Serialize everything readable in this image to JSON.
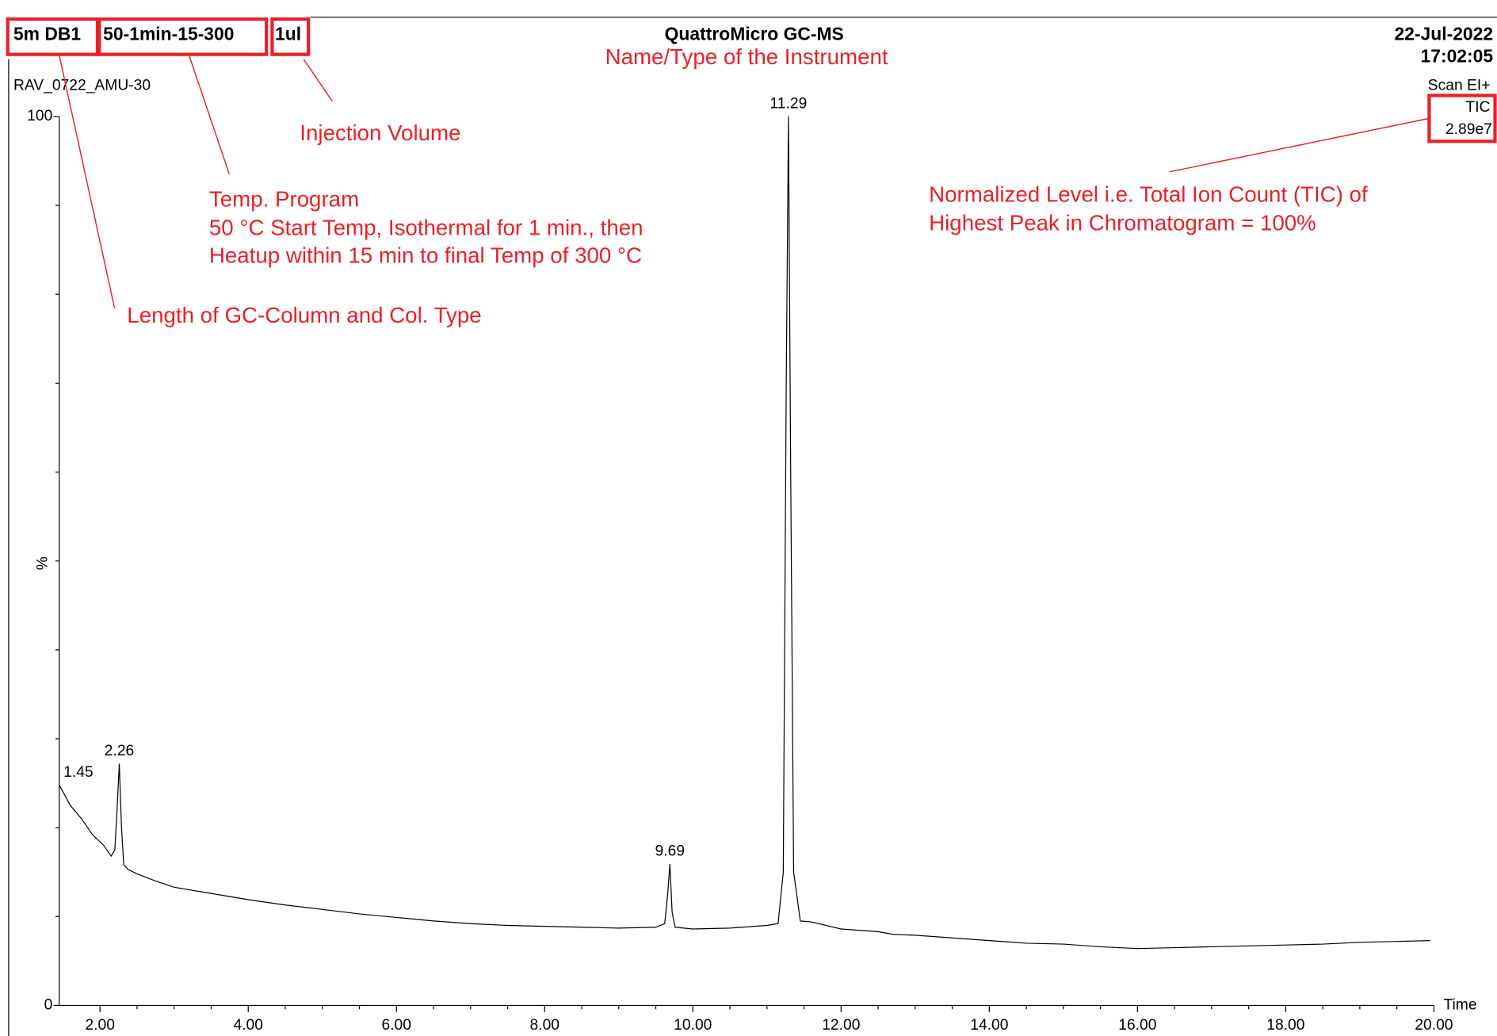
{
  "chart_data": {
    "type": "line",
    "header": {
      "column": "5m DB1",
      "program": "50-1min-15-300",
      "volume": "1ul",
      "instrument": "QuattroMicro GC-MS",
      "date": "22-Jul-2022",
      "time": "17:02:05",
      "sample": "RAV_0722_AMU-30",
      "scan": "Scan EI+",
      "trace": "TIC",
      "intensity": "2.89e7"
    },
    "notes": {
      "instrument": "Name/Type of the Instrument",
      "volume": "Injection Volume",
      "program": [
        "Temp. Program",
        "50 °C Start Temp, Isothermal for 1 min., then",
        "Heatup within 15 min to final Temp of 300 °C"
      ],
      "column": "Length of GC-Column and Col. Type",
      "intensity": [
        "Normalized Level i.e. Total Ion Count (TIC) of",
        "Highest Peak in Chromatogram = 100%"
      ]
    },
    "x_label": "Time",
    "y_label": "%",
    "xlim": [
      1.45,
      20.0
    ],
    "ylim": [
      0,
      100
    ],
    "xticks": [
      {
        "value": 2,
        "label": "2.00"
      },
      {
        "value": 4,
        "label": "4.00"
      },
      {
        "value": 6,
        "label": "6.00"
      },
      {
        "value": 8,
        "label": "8.00"
      },
      {
        "value": 10,
        "label": "10.00"
      },
      {
        "value": 12,
        "label": "12.00"
      },
      {
        "value": 14,
        "label": "14.00"
      },
      {
        "value": 16,
        "label": "16.00"
      },
      {
        "value": 18,
        "label": "18.00"
      },
      {
        "value": 20,
        "label": "20.00"
      }
    ],
    "xminorticks": [
      2.5,
      3,
      3.5,
      4.5,
      5,
      5.5,
      6.5,
      7,
      7.5,
      8.5,
      9,
      9.5,
      10.5,
      11,
      11.5,
      12.5,
      13,
      13.5,
      14.5,
      15,
      15.5,
      16.5,
      17,
      17.5,
      18.5,
      19,
      19.5
    ],
    "yticks": [
      0,
      100
    ],
    "yminorticks": [
      10,
      20,
      30,
      40,
      50,
      60,
      70,
      80,
      90
    ],
    "series": [
      {
        "color": "#000000",
        "x": [
          1.45,
          1.6,
          1.75,
          1.9,
          2.05,
          2.15,
          2.2,
          2.23,
          2.26,
          2.29,
          2.32,
          2.38,
          2.5,
          2.75,
          3.0,
          3.5,
          4.0,
          4.5,
          5.0,
          5.5,
          6.0,
          6.5,
          7.0,
          7.5,
          8.0,
          8.5,
          9.0,
          9.5,
          9.62,
          9.66,
          9.69,
          9.72,
          9.76,
          10.0,
          10.5,
          11.0,
          11.15,
          11.22,
          11.26,
          11.29,
          11.32,
          11.36,
          11.45,
          11.6,
          12.0,
          12.5,
          12.7,
          13.0,
          13.5,
          14.0,
          14.5,
          15.0,
          15.5,
          16.0,
          16.5,
          17.0,
          17.5,
          18.0,
          18.5,
          19.0,
          19.5,
          19.95
        ],
        "values": [
          24.8,
          22.5,
          21.0,
          19.2,
          18.0,
          16.8,
          17.5,
          22,
          27.2,
          20,
          15.8,
          15.3,
          14.8,
          14.0,
          13.3,
          12.6,
          11.9,
          11.3,
          10.8,
          10.3,
          9.9,
          9.5,
          9.2,
          9.0,
          8.9,
          8.8,
          8.7,
          8.8,
          9.2,
          12.5,
          15.9,
          10.5,
          8.8,
          8.6,
          8.7,
          9.0,
          9.2,
          15,
          70,
          100,
          60,
          15,
          9.5,
          9.4,
          8.6,
          8.3,
          8.0,
          7.9,
          7.6,
          7.3,
          7.0,
          6.9,
          6.6,
          6.4,
          6.5,
          6.6,
          6.7,
          6.8,
          6.9,
          7.1,
          7.2,
          7.3
        ]
      }
    ],
    "peak_labels": [
      {
        "text": "1.45",
        "x": 1.45
      },
      {
        "text": "2.26",
        "x": 2.26
      },
      {
        "text": "9.69",
        "x": 9.69
      },
      {
        "text": "11.29",
        "x": 11.29
      }
    ]
  }
}
